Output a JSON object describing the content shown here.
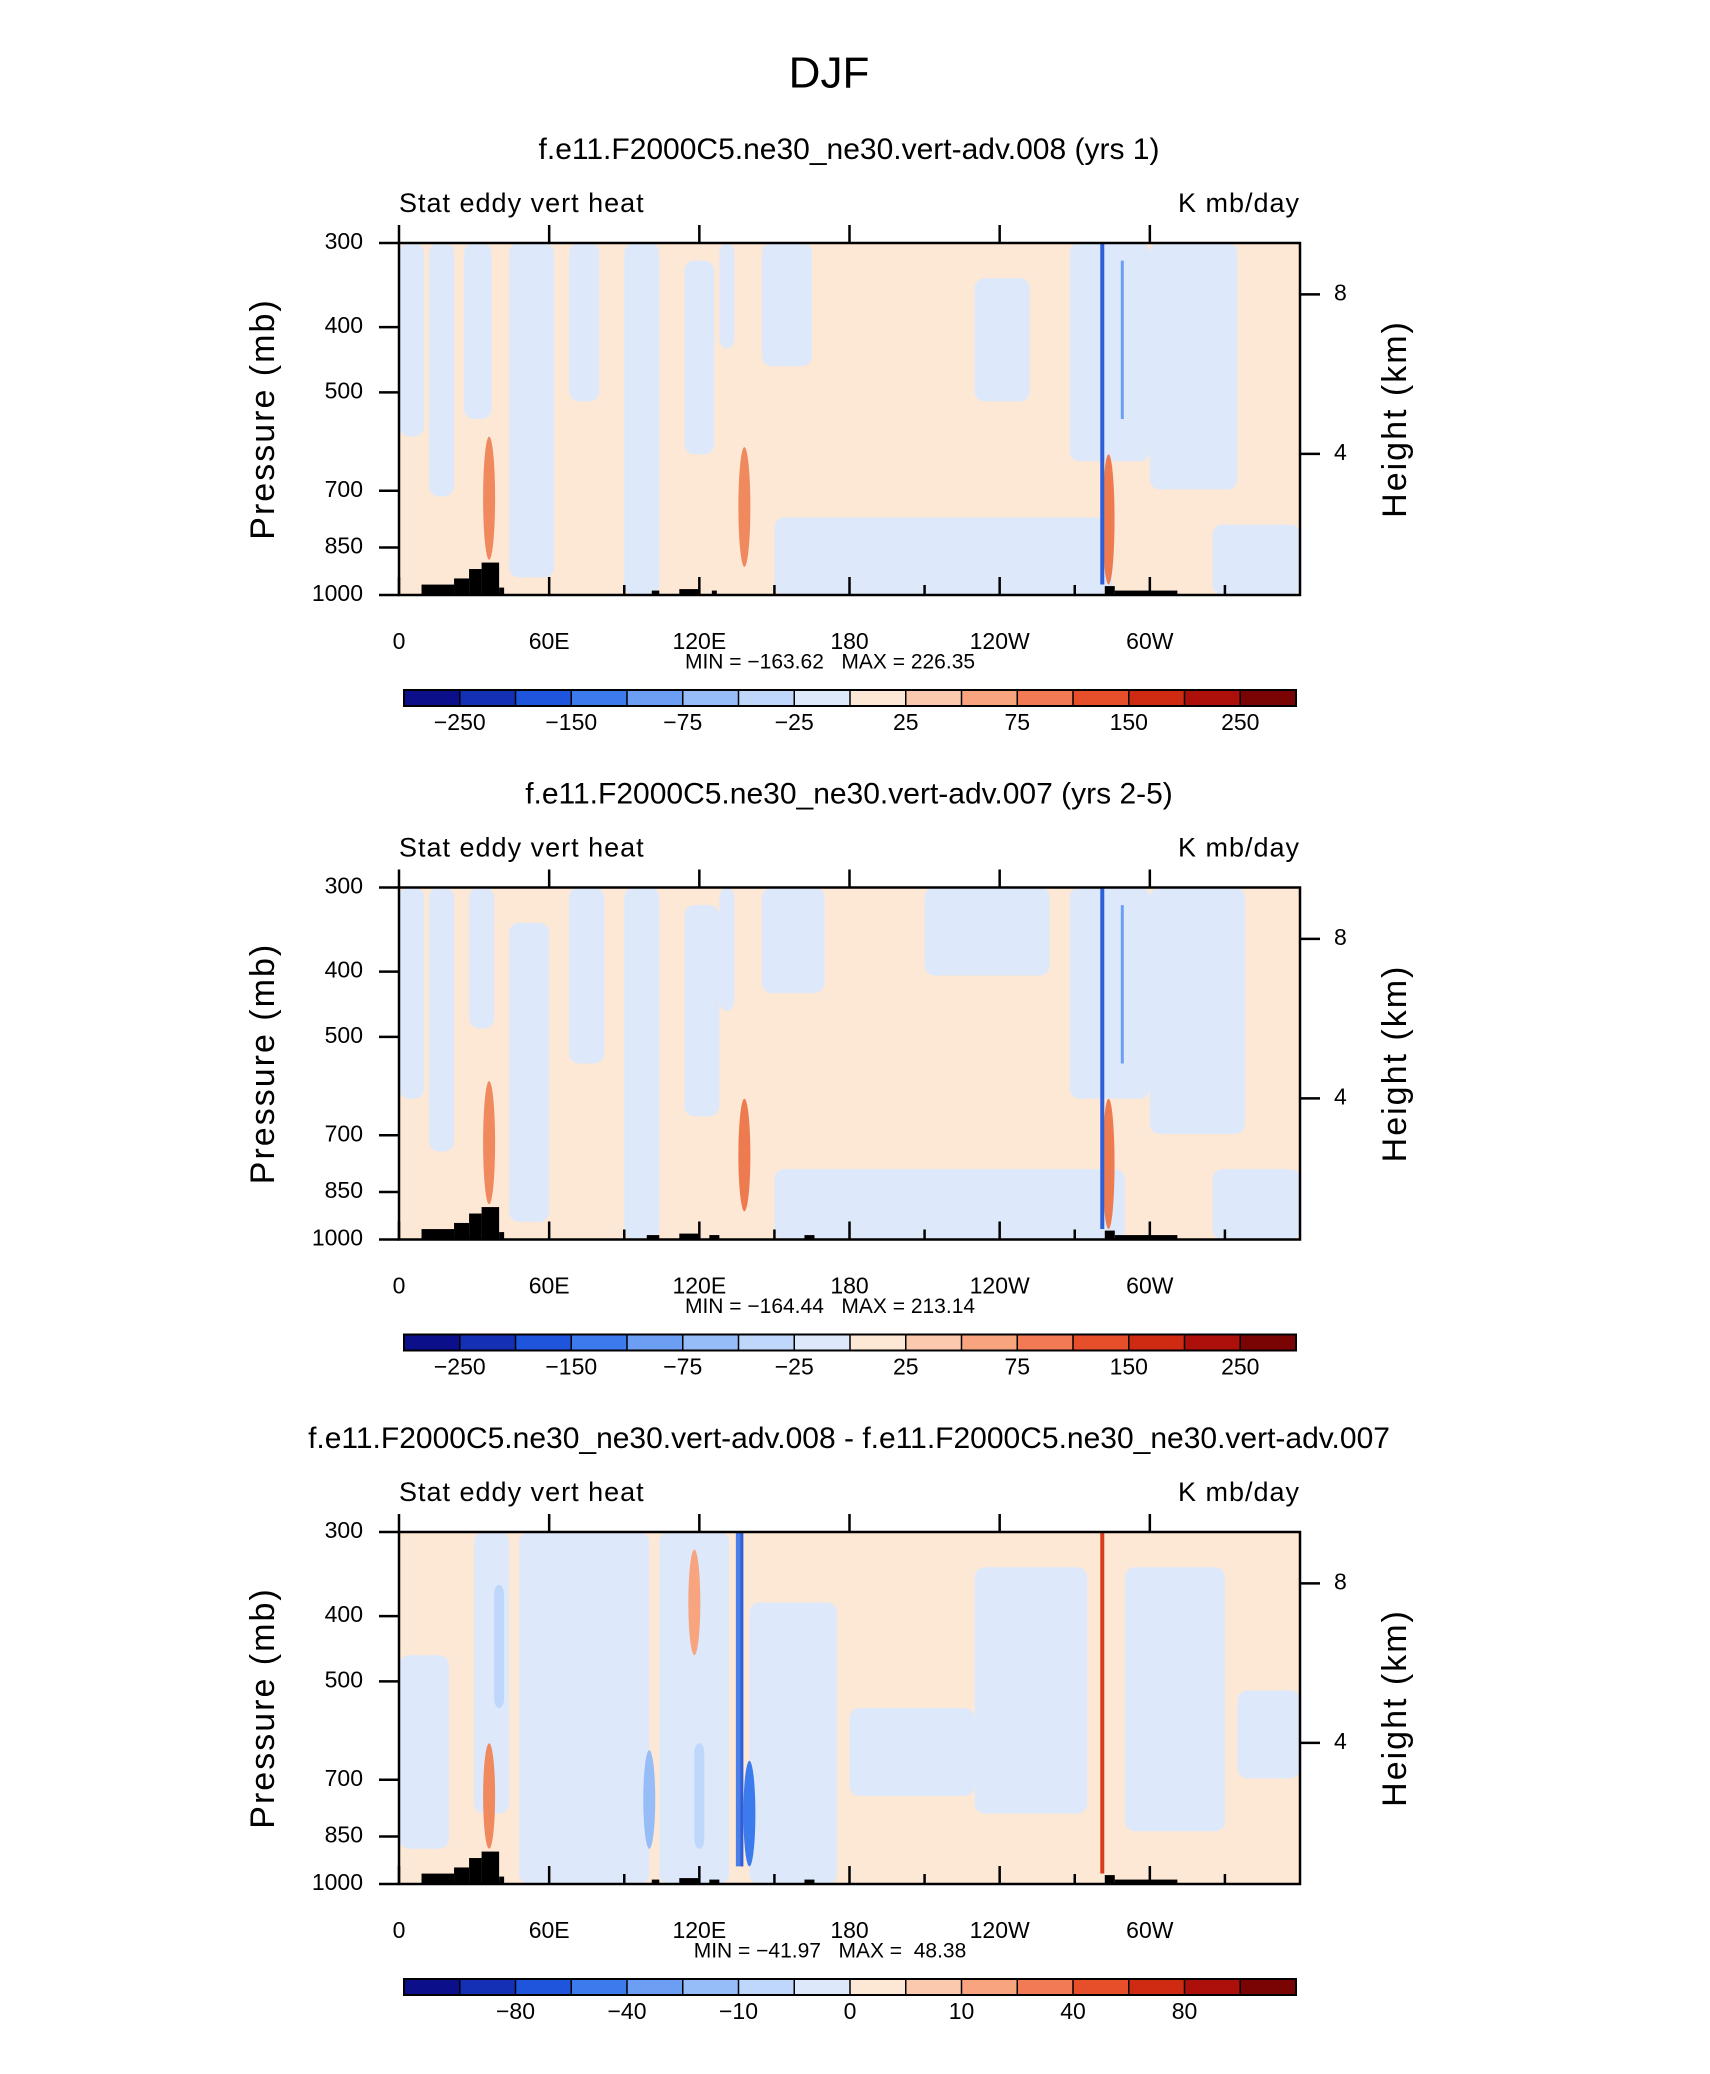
{
  "chart_data": {
    "type": "contour",
    "title": "DJF",
    "panels": [
      {
        "title": "f.e11.F2000C5.ne30_ne30.vert-adv.008 (yrs 1)",
        "left_label": "Stat eddy vert heat",
        "right_label": "K mb/day",
        "ylabel": "Pressure (mb)",
        "y2label": "Height (km)",
        "stats": "MIN = −163.62   MAX = 226.35",
        "xlim": [
          0,
          360
        ],
        "xticks": [
          0,
          {
            "value": 30,
            "label": null
          },
          {
            "value": 60,
            "label": "60E"
          },
          {
            "value": 90,
            "label": null
          },
          {
            "value": 120,
            "label": "120E"
          },
          {
            "value": 150,
            "label": null
          },
          180,
          {
            "value": 210,
            "label": null
          },
          {
            "value": 240,
            "label": "120W"
          },
          {
            "value": 270,
            "label": null
          },
          {
            "value": 300,
            "label": "60W"
          },
          {
            "value": 330,
            "label": null
          }
        ],
        "ylim": [
          1000,
          300
        ],
        "ylog": true,
        "yticks": [
          300,
          400,
          500,
          700,
          850,
          1000
        ],
        "y2lim": [
          0.46,
          9.29
        ],
        "y2ticks": [
          4,
          8
        ],
        "colorbar": {
          "colors": [
            "#0b0f8a",
            "#1430b5",
            "#1f55dc",
            "#3c7bee",
            "#6c9ff4",
            "#97bdf8",
            "#bed7fb",
            "#dde9fb",
            "#fde8d6",
            "#fbcaae",
            "#f8a47f",
            "#f27b55",
            "#e74f2b",
            "#cf2b13",
            "#ad100a",
            "#7a0303"
          ],
          "levels": [
            {
              "value": -250,
              "label": "−250"
            },
            {
              "value": -200,
              "label": null
            },
            {
              "value": -150,
              "label": "−150"
            },
            {
              "value": -100,
              "label": null
            },
            {
              "value": -75,
              "label": "−75"
            },
            {
              "value": -50,
              "label": null
            },
            {
              "value": -25,
              "label": "−25"
            },
            {
              "value": 0,
              "label": null
            },
            25,
            {
              "value": 50,
              "label": null
            },
            75,
            {
              "value": 100,
              "label": null
            },
            150,
            {
              "value": 200,
              "label": null
            },
            250
          ]
        }
      },
      {
        "title": "f.e11.F2000C5.ne30_ne30.vert-adv.007 (yrs 2-5)",
        "left_label": "Stat eddy vert heat",
        "right_label": "K mb/day",
        "ylabel": "Pressure (mb)",
        "y2label": "Height (km)",
        "stats": "MIN = −164.44   MAX = 213.14",
        "xlim": [
          0,
          360
        ],
        "xticks": [
          0,
          {
            "value": 30,
            "label": null
          },
          {
            "value": 60,
            "label": "60E"
          },
          {
            "value": 90,
            "label": null
          },
          {
            "value": 120,
            "label": "120E"
          },
          {
            "value": 150,
            "label": null
          },
          180,
          {
            "value": 210,
            "label": null
          },
          {
            "value": 240,
            "label": "120W"
          },
          {
            "value": 270,
            "label": null
          },
          {
            "value": 300,
            "label": "60W"
          },
          {
            "value": 330,
            "label": null
          }
        ],
        "ylim": [
          1000,
          300
        ],
        "ylog": true,
        "yticks": [
          300,
          400,
          500,
          700,
          850,
          1000
        ],
        "y2lim": [
          0.46,
          9.29
        ],
        "y2ticks": [
          4,
          8
        ],
        "colorbar": {
          "colors": [
            "#0b0f8a",
            "#1430b5",
            "#1f55dc",
            "#3c7bee",
            "#6c9ff4",
            "#97bdf8",
            "#bed7fb",
            "#dde9fb",
            "#fde8d6",
            "#fbcaae",
            "#f8a47f",
            "#f27b55",
            "#e74f2b",
            "#cf2b13",
            "#ad100a",
            "#7a0303"
          ],
          "levels": [
            {
              "value": -250,
              "label": "−250"
            },
            {
              "value": -200,
              "label": null
            },
            {
              "value": -150,
              "label": "−150"
            },
            {
              "value": -100,
              "label": null
            },
            {
              "value": -75,
              "label": "−75"
            },
            {
              "value": -50,
              "label": null
            },
            {
              "value": -25,
              "label": "−25"
            },
            {
              "value": 0,
              "label": null
            },
            25,
            {
              "value": 50,
              "label": null
            },
            75,
            {
              "value": 100,
              "label": null
            },
            150,
            {
              "value": 200,
              "label": null
            },
            250
          ]
        }
      },
      {
        "title": "f.e11.F2000C5.ne30_ne30.vert-adv.008 - f.e11.F2000C5.ne30_ne30.vert-adv.007",
        "left_label": "Stat eddy vert heat",
        "right_label": "K mb/day",
        "ylabel": "Pressure (mb)",
        "y2label": "Height (km)",
        "stats": "MIN = −41.97   MAX =  48.38",
        "xlim": [
          0,
          360
        ],
        "xticks": [
          0,
          {
            "value": 30,
            "label": null
          },
          {
            "value": 60,
            "label": "60E"
          },
          {
            "value": 90,
            "label": null
          },
          {
            "value": 120,
            "label": "120E"
          },
          {
            "value": 150,
            "label": null
          },
          180,
          {
            "value": 210,
            "label": null
          },
          {
            "value": 240,
            "label": "120W"
          },
          {
            "value": 270,
            "label": null
          },
          {
            "value": 300,
            "label": "60W"
          },
          {
            "value": 330,
            "label": null
          }
        ],
        "ylim": [
          1000,
          300
        ],
        "ylog": true,
        "yticks": [
          300,
          400,
          500,
          700,
          850,
          1000
        ],
        "y2lim": [
          0.46,
          9.29
        ],
        "y2ticks": [
          4,
          8
        ],
        "colorbar": {
          "colors": [
            "#0b0f8a",
            "#1430b5",
            "#1f55dc",
            "#3c7bee",
            "#6c9ff4",
            "#97bdf8",
            "#bed7fb",
            "#dde9fb",
            "#fde8d6",
            "#fbcaae",
            "#f8a47f",
            "#f27b55",
            "#e74f2b",
            "#cf2b13",
            "#ad100a",
            "#7a0303"
          ],
          "levels": [
            {
              "value": -100,
              "label": null
            },
            {
              "value": -80,
              "label": "−80"
            },
            {
              "value": -60,
              "label": null
            },
            {
              "value": -40,
              "label": "−40"
            },
            {
              "value": -20,
              "label": null
            },
            {
              "value": -10,
              "label": "−10"
            },
            {
              "value": -5,
              "label": null
            },
            0,
            {
              "value": 5,
              "label": null
            },
            10,
            {
              "value": 20,
              "label": null
            },
            40,
            {
              "value": 60,
              "label": null
            },
            80,
            {
              "value": 100,
              "label": null
            }
          ]
        }
      }
    ]
  }
}
